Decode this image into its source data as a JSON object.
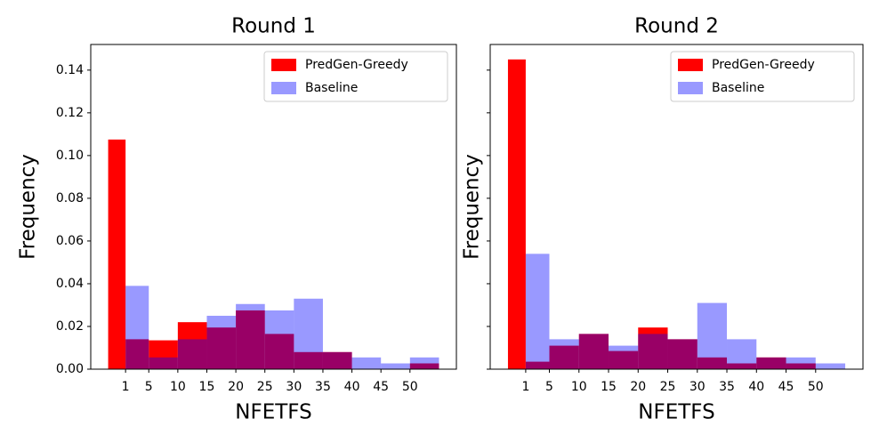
{
  "chart_data": [
    {
      "type": "histogram",
      "title": "Round 1",
      "x_label": "NFETFS",
      "y_label": "Frequency",
      "bins": [
        -2,
        1,
        5,
        10,
        15,
        20,
        25,
        30,
        35,
        40,
        45,
        50,
        55
      ],
      "series": [
        {
          "name": "PredGen-Greedy",
          "color": "#ff0000",
          "opacity": 1,
          "values": [
            0.1075,
            0.014,
            0.0135,
            0.022,
            0.0195,
            0.0275,
            0.0165,
            0.008,
            0.008,
            0,
            0,
            0.0027
          ]
        },
        {
          "name": "Baseline",
          "color": "#0000ff",
          "opacity": 0.4,
          "values": [
            0,
            0.039,
            0.0055,
            0.014,
            0.025,
            0.0305,
            0.0275,
            0.033,
            0.008,
            0.0055,
            0.0027,
            0.0055
          ]
        }
      ],
      "xlim": [
        -5,
        58
      ],
      "ylim": [
        0,
        0.152
      ],
      "xticks": [
        1,
        5,
        10,
        15,
        20,
        25,
        30,
        35,
        40,
        45,
        50
      ],
      "yticks": [
        {
          "value": 0,
          "label": "0.00"
        },
        0.02,
        0.04,
        0.06,
        0.08,
        {
          "value": 0.1,
          "label": "0.10"
        },
        0.12,
        0.14
      ],
      "legend": "upper right"
    },
    {
      "type": "histogram",
      "title": "Round 2",
      "x_label": "NFETFS",
      "y_label": "Frequency",
      "bins": [
        -2,
        1,
        5,
        10,
        15,
        20,
        25,
        30,
        35,
        40,
        45,
        50,
        55
      ],
      "series": [
        {
          "name": "PredGen-Greedy",
          "color": "#ff0000",
          "opacity": 1,
          "values": [
            0.145,
            0.0035,
            0.011,
            0.0165,
            0.0085,
            0.0195,
            0.014,
            0.0055,
            0.0027,
            0.0055,
            0.0027,
            0
          ]
        },
        {
          "name": "Baseline",
          "color": "#0000ff",
          "opacity": 0.4,
          "values": [
            0,
            0.054,
            0.014,
            0.0165,
            0.011,
            0.0165,
            0.014,
            0.031,
            0.014,
            0.0055,
            0.0055,
            0.0027
          ]
        }
      ],
      "xlim": [
        -5,
        58
      ],
      "ylim": [
        0,
        0.152
      ],
      "xticks": [
        1,
        5,
        10,
        15,
        20,
        25,
        30,
        35,
        40,
        45,
        50
      ],
      "yticks": [
        0,
        0.02,
        0.04,
        0.06,
        0.08,
        0.1,
        0.12,
        0.14
      ],
      "show_ytick_labels": false,
      "legend": "upper right"
    }
  ]
}
